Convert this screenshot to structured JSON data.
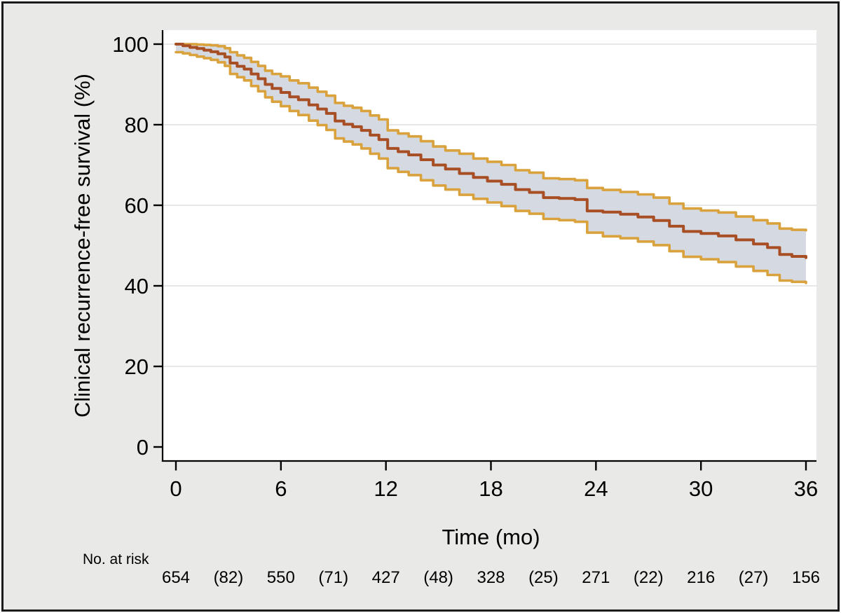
{
  "styles": {
    "figure_background": "#e9e9e7",
    "plot_background": "#ffffff",
    "frame_color": "#1b1b1b",
    "axis_color": "#000000",
    "gridline_color": "#e6e8e8",
    "text_color": "#000000"
  },
  "chart_data": {
    "type": "line",
    "variant": "kaplan-meier-step-with-confidence-band",
    "title": "",
    "xlabel": "Time (mo)",
    "ylabel": "Clinical recurrence-free survival (%)",
    "xlim": [
      0,
      36
    ],
    "ylim": [
      0,
      100
    ],
    "x_ticks": [
      0,
      6,
      12,
      18,
      24,
      30,
      36
    ],
    "y_ticks": [
      100,
      80,
      60,
      40,
      20,
      0
    ],
    "y_gridlines": [
      100,
      80,
      60,
      40,
      20
    ],
    "grid": "horizontal",
    "legend": null,
    "colors": {
      "survival_line": "#a84e24",
      "ci_line": "#d9a23c",
      "ci_fill": "#d5dae2"
    },
    "x": [
      0,
      0.4,
      0.8,
      1.2,
      1.6,
      2,
      2.4,
      2.8,
      3.1,
      3.5,
      3.9,
      4.3,
      4.7,
      5.1,
      5.5,
      6,
      6.5,
      7,
      7.6,
      8.1,
      8.6,
      9.1,
      9.6,
      10.1,
      10.6,
      11.1,
      11.6,
      12.1,
      12.7,
      13.3,
      14,
      14.7,
      15.4,
      16.2,
      17,
      17.8,
      18.6,
      19.4,
      20.2,
      21,
      21.9,
      22.8,
      23.5,
      24.4,
      25.4,
      26.4,
      27.3,
      28.2,
      29,
      30,
      31,
      32,
      33,
      33.8,
      34.5,
      35.2,
      36
    ],
    "series": [
      {
        "name": "Survival estimate",
        "role": "estimate",
        "values": [
          100,
          99.6,
          99.2,
          98.9,
          98.5,
          98.1,
          97.6,
          96.8,
          95.3,
          94.5,
          93.8,
          92.6,
          91.4,
          90,
          89,
          88,
          86.9,
          86.2,
          84.9,
          83.9,
          82.8,
          80.9,
          80.1,
          79.5,
          78.6,
          77.4,
          76.3,
          74.1,
          73.3,
          72.5,
          71.3,
          70,
          69,
          67.9,
          66.9,
          66,
          65.2,
          63.9,
          63.2,
          61.9,
          61.7,
          61.4,
          58.6,
          58.3,
          57.8,
          57.1,
          56.2,
          54.8,
          53.5,
          53,
          52.4,
          51.4,
          50.4,
          49.5,
          47.8,
          47.3,
          47
        ]
      },
      {
        "name": "95% CI upper bound",
        "role": "ci-upper",
        "values": [
          100,
          100,
          100,
          99.9,
          99.8,
          99.7,
          99.5,
          99,
          98,
          97.2,
          96.6,
          95.6,
          94.6,
          93.4,
          92.6,
          92,
          91,
          90.3,
          89.2,
          88.2,
          87.2,
          85.4,
          84.7,
          84.2,
          83.4,
          82.3,
          81.3,
          78.6,
          77.8,
          77.1,
          75.9,
          74.6,
          73.6,
          72.8,
          71.6,
          70.8,
          70,
          68.7,
          68.1,
          66.7,
          66.5,
          66.2,
          64.3,
          63.8,
          63.3,
          62.7,
          61.9,
          60.4,
          59.2,
          58.7,
          58.2,
          57.2,
          56.3,
          55.5,
          54.2,
          53.9,
          53.8
        ]
      },
      {
        "name": "95% CI lower bound",
        "role": "ci-lower",
        "values": [
          98,
          97.7,
          97.3,
          96.9,
          96.5,
          96.1,
          95.5,
          94.6,
          92.6,
          91.8,
          91,
          89.6,
          88.3,
          86.8,
          85.7,
          84.6,
          83.4,
          82.4,
          81,
          79.9,
          78.7,
          76.6,
          75.8,
          75.1,
          74.1,
          72.8,
          71.6,
          69.2,
          68.3,
          67.5,
          66.2,
          64.9,
          63.9,
          62.6,
          61.6,
          60.7,
          59.8,
          58.6,
          57.9,
          56.6,
          56.3,
          55.9,
          53.2,
          52.3,
          51.8,
          51,
          50.1,
          48.6,
          47.2,
          46.6,
          45.9,
          44.8,
          43.7,
          42.7,
          41.3,
          41,
          40.7
        ]
      }
    ],
    "at_risk": {
      "label": "No. at risk",
      "times": [
        0,
        3,
        6,
        9,
        12,
        15,
        18,
        21,
        24,
        27,
        30,
        33,
        36
      ],
      "counts": [
        "654",
        "(82)",
        "550",
        "(71)",
        "427",
        "(48)",
        "328",
        "(25)",
        "271",
        "(22)",
        "216",
        "(27)",
        "156"
      ]
    }
  }
}
